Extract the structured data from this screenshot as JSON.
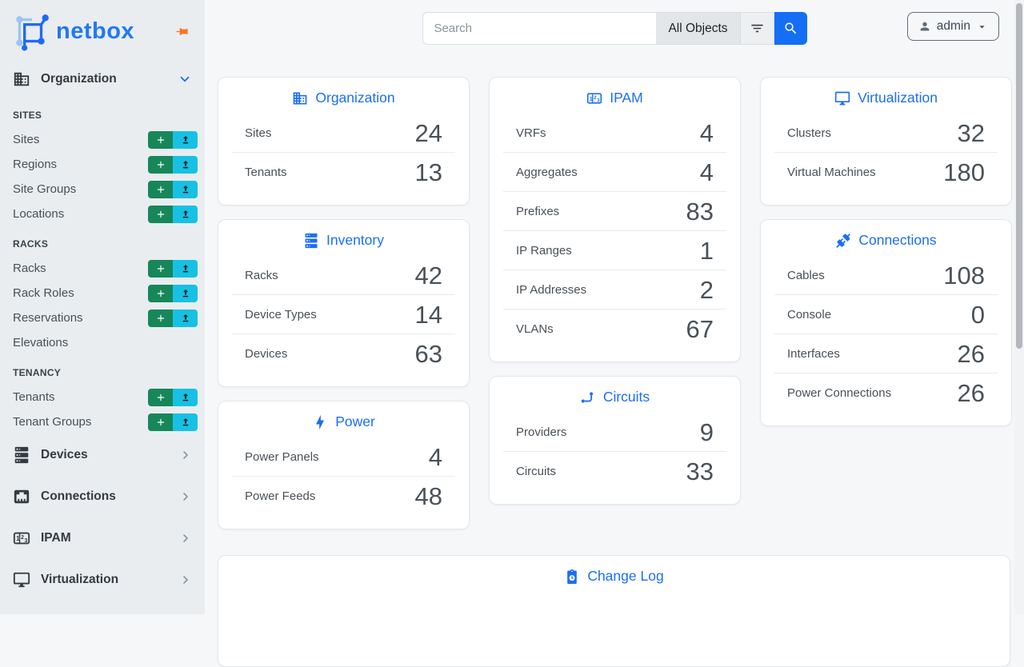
{
  "brand": {
    "name": "netbox"
  },
  "topbar": {
    "search_placeholder": "Search",
    "scope_label": "All Objects",
    "user_label": "admin"
  },
  "sidebar": {
    "organization": {
      "label": "Organization",
      "icon": "building-icon",
      "state": "expanded"
    },
    "groups": [
      {
        "heading": "SITES",
        "items": [
          {
            "label": "Sites",
            "actions": true
          },
          {
            "label": "Regions",
            "actions": true
          },
          {
            "label": "Site Groups",
            "actions": true
          },
          {
            "label": "Locations",
            "actions": true
          }
        ]
      },
      {
        "heading": "RACKS",
        "items": [
          {
            "label": "Racks",
            "actions": true
          },
          {
            "label": "Rack Roles",
            "actions": true
          },
          {
            "label": "Reservations",
            "actions": true
          },
          {
            "label": "Elevations",
            "actions": false
          }
        ]
      },
      {
        "heading": "TENANCY",
        "items": [
          {
            "label": "Tenants",
            "actions": true
          },
          {
            "label": "Tenant Groups",
            "actions": true
          }
        ]
      }
    ],
    "menus": [
      {
        "label": "Devices",
        "icon": "server-icon"
      },
      {
        "label": "Connections",
        "icon": "ethernet-icon"
      },
      {
        "label": "IPAM",
        "icon": "counter-icon"
      },
      {
        "label": "Virtualization",
        "icon": "monitor-icon"
      }
    ]
  },
  "cards": {
    "columns": [
      [
        {
          "id": "organization",
          "title": "Organization",
          "icon": "building-icon",
          "stats": [
            {
              "label": "Sites",
              "value": "24"
            },
            {
              "label": "Tenants",
              "value": "13"
            }
          ]
        },
        {
          "id": "inventory",
          "title": "Inventory",
          "icon": "server-icon",
          "stats": [
            {
              "label": "Racks",
              "value": "42"
            },
            {
              "label": "Device Types",
              "value": "14"
            },
            {
              "label": "Devices",
              "value": "63"
            }
          ]
        },
        {
          "id": "power",
          "title": "Power",
          "icon": "lightning-icon",
          "stats": [
            {
              "label": "Power Panels",
              "value": "4"
            },
            {
              "label": "Power Feeds",
              "value": "48"
            }
          ]
        }
      ],
      [
        {
          "id": "ipam",
          "title": "IPAM",
          "icon": "counter-icon",
          "stats": [
            {
              "label": "VRFs",
              "value": "4"
            },
            {
              "label": "Aggregates",
              "value": "4"
            },
            {
              "label": "Prefixes",
              "value": "83"
            },
            {
              "label": "IP Ranges",
              "value": "1"
            },
            {
              "label": "IP Addresses",
              "value": "2"
            },
            {
              "label": "VLANs",
              "value": "67"
            }
          ]
        },
        {
          "id": "circuits",
          "title": "Circuits",
          "icon": "transit-icon",
          "stats": [
            {
              "label": "Providers",
              "value": "9"
            },
            {
              "label": "Circuits",
              "value": "33"
            }
          ]
        }
      ],
      [
        {
          "id": "virtualization",
          "title": "Virtualization",
          "icon": "monitor-icon",
          "stats": [
            {
              "label": "Clusters",
              "value": "32"
            },
            {
              "label": "Virtual Machines",
              "value": "180"
            }
          ]
        },
        {
          "id": "connections",
          "title": "Connections",
          "icon": "cable-icon",
          "stats": [
            {
              "label": "Cables",
              "value": "108"
            },
            {
              "label": "Console",
              "value": "0"
            },
            {
              "label": "Interfaces",
              "value": "26"
            },
            {
              "label": "Power Connections",
              "value": "26"
            }
          ]
        }
      ]
    ],
    "changelog": {
      "id": "changelog",
      "title": "Change Log",
      "icon": "clipboard-clock-icon"
    }
  },
  "colors": {
    "accent_blue": "#1b6ef3",
    "button_blue": "#146ef6",
    "add_green": "#17875a",
    "import_cyan": "#17c1e4",
    "pin_orange": "#f9731f",
    "sidebar_bg": "#e9edf0",
    "page_bg": "#f6f7f9"
  }
}
